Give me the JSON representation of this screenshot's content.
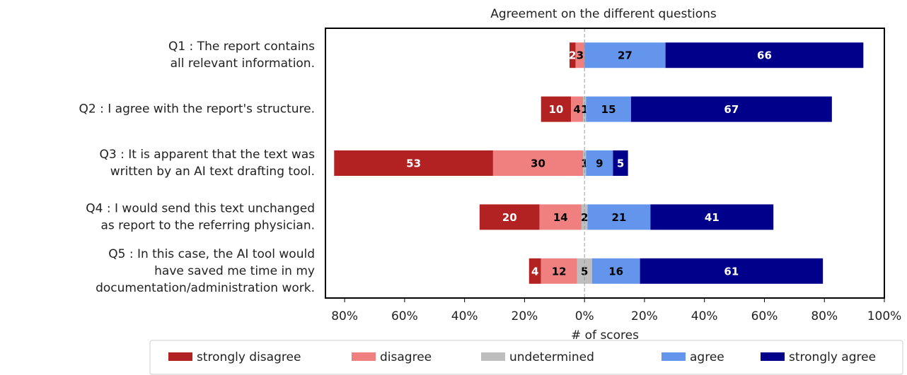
{
  "chart_data": {
    "type": "diverging-bar",
    "title": "Agreement on the different questions",
    "xlabel": "# of scores",
    "categories": [
      [
        "Q1 : The report contains",
        "all relevant information."
      ],
      [
        "Q2 : I agree with the report's structure."
      ],
      [
        "Q3 : It is apparent that the text was",
        "written by an AI text drafting tool."
      ],
      [
        "Q4 : I would send this text unchanged",
        "as report to the referring physician."
      ],
      [
        "Q5 : In this case, the AI tool would",
        "have saved me time in my",
        "documentation/administration work."
      ]
    ],
    "series": [
      {
        "name": "strongly disagree",
        "color": "#b22222",
        "side": "left",
        "values": [
          2,
          10,
          53,
          20,
          4
        ]
      },
      {
        "name": "disagree",
        "color": "#f08080",
        "side": "left",
        "values": [
          3,
          4,
          30,
          14,
          12
        ]
      },
      {
        "name": "undetermined",
        "color": "#bebebe",
        "side": "center",
        "values": [
          0,
          1,
          1,
          2,
          5
        ]
      },
      {
        "name": "agree",
        "color": "#6495ed",
        "side": "right",
        "values": [
          27,
          15,
          9,
          21,
          16
        ]
      },
      {
        "name": "strongly agree",
        "color": "#00008b",
        "side": "right",
        "values": [
          66,
          67,
          5,
          41,
          61
        ]
      }
    ],
    "xlim": [
      -86.4,
      100
    ],
    "xticks": [
      {
        "value": -80,
        "label": "80%"
      },
      {
        "value": -60,
        "label": "60%"
      },
      {
        "value": -40,
        "label": "40%"
      },
      {
        "value": -20,
        "label": "20%"
      },
      {
        "value": 0,
        "label": "0%"
      },
      {
        "value": 20,
        "label": "20%"
      },
      {
        "value": 40,
        "label": "40%"
      },
      {
        "value": 60,
        "label": "60%"
      },
      {
        "value": 80,
        "label": "80%"
      },
      {
        "value": 100,
        "label": "100%"
      }
    ]
  }
}
